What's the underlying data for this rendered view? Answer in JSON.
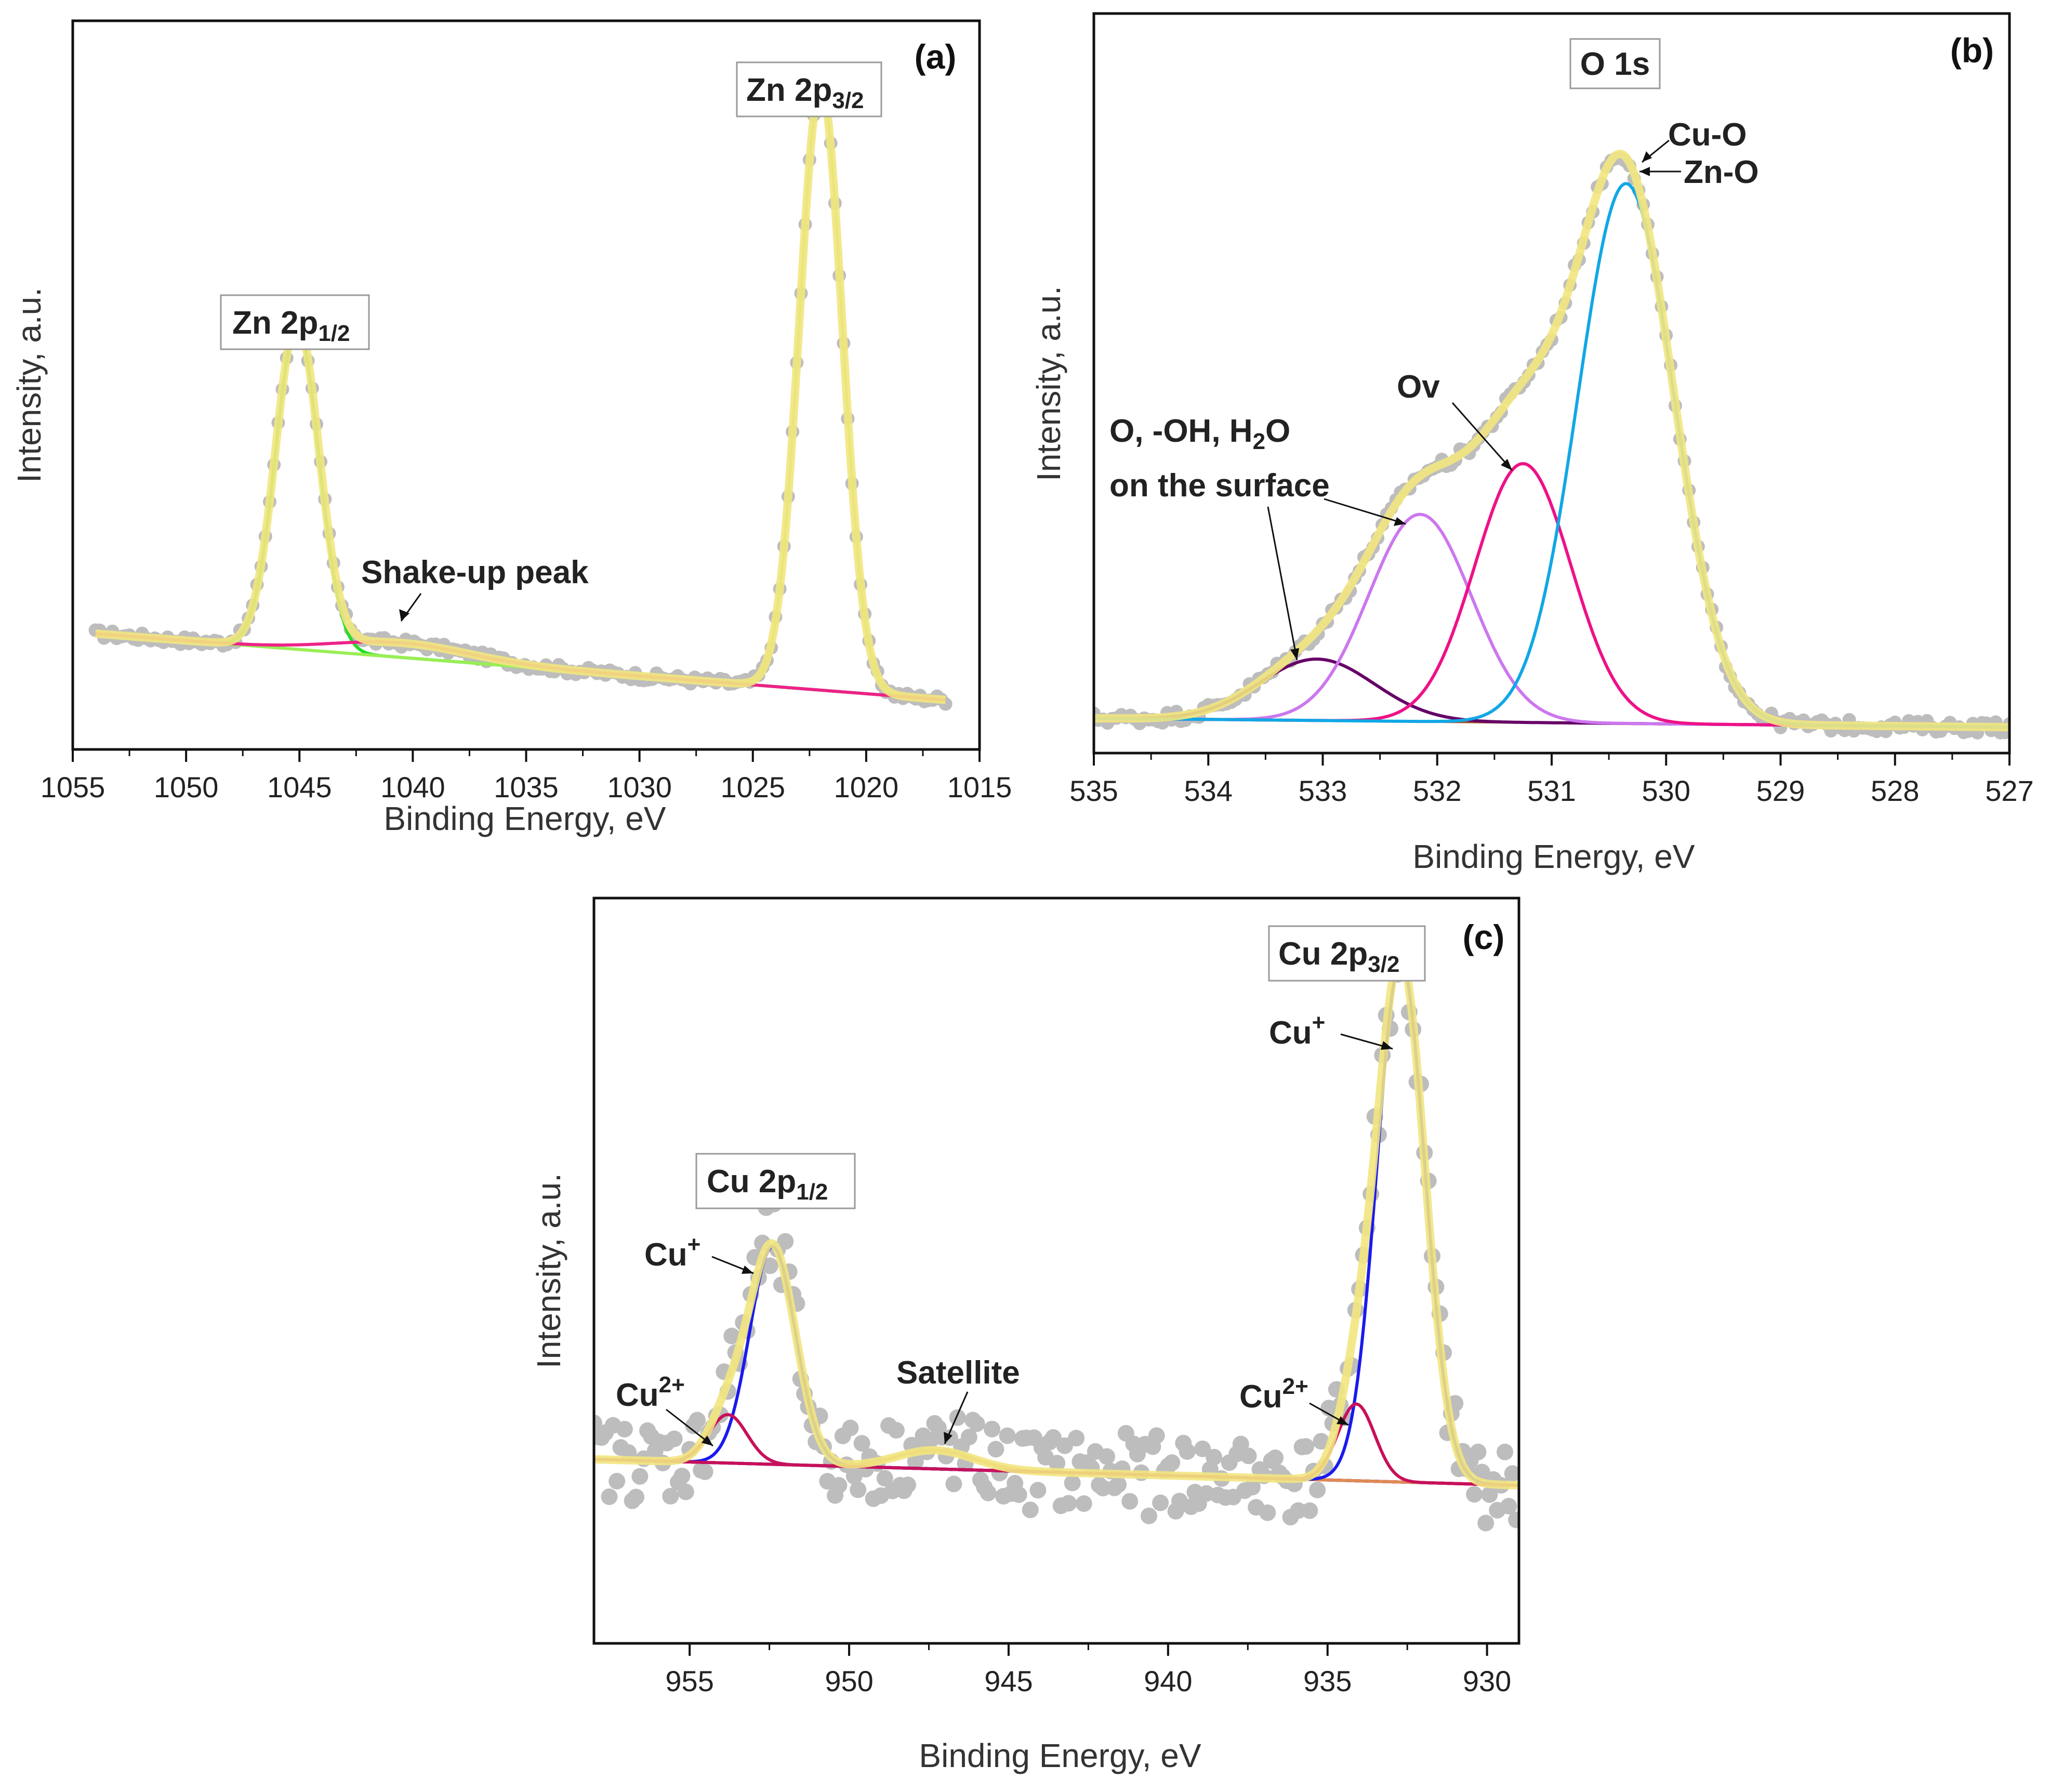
{
  "chart_data": [
    {
      "id": "a",
      "type": "line",
      "panel_label": "(a)",
      "xlabel": "Binding Energy, eV",
      "ylabel": "Intensity, a.u.",
      "xlim": [
        1055,
        1015
      ],
      "xticks": [
        1055,
        1050,
        1045,
        1040,
        1035,
        1030,
        1025,
        1020,
        1015
      ],
      "ylim": [
        0,
        1
      ],
      "peak_labels": [
        {
          "main": "Zn 2p",
          "sub": "1/2",
          "x": 1045.1
        },
        {
          "main": "Zn 2p",
          "sub": "3/2",
          "x": 1022.0
        }
      ],
      "annotations": [
        {
          "text": "Shake-up peak",
          "x": 1040.5
        }
      ],
      "background": {
        "x": [
          1054,
          1016.5
        ],
        "y": [
          0.159,
          0.068
        ]
      },
      "series": [
        {
          "name": "background",
          "color": "#22b422",
          "kind": "background"
        },
        {
          "name": "Zn 2p1/2",
          "color": "#22dd22",
          "peaks": [
            {
              "center": 1045.1,
              "height": 0.445,
              "width": 0.95
            }
          ]
        },
        {
          "name": "Zn 2p3/2",
          "color": "#99ee55",
          "peaks": [
            {
              "center": 1022.0,
              "height": 0.83,
              "width": 0.95
            }
          ]
        },
        {
          "name": "Shake-up",
          "color": "#ee2288",
          "peaks": [
            {
              "center": 1040.5,
              "height": 0.02,
              "width": 3.0
            }
          ]
        },
        {
          "name": "Envelope",
          "color": "#f2e680",
          "kind": "envelope"
        },
        {
          "name": "Experimental",
          "color": "#bdbdbd",
          "kind": "scatter"
        }
      ]
    },
    {
      "id": "b",
      "type": "line",
      "panel_label": "(b)",
      "xlabel": "Binding Energy, eV",
      "ylabel": "Intensity, a.u.",
      "xlim": [
        535,
        527
      ],
      "xticks": [
        535,
        534,
        533,
        532,
        531,
        530,
        529,
        528,
        527
      ],
      "ylim": [
        0,
        1
      ],
      "peak_labels": [
        {
          "main": "O 1s",
          "sub": "",
          "x": 530.5
        }
      ],
      "annotations": [
        {
          "text": "Cu-O",
          "x": 530.4
        },
        {
          "text": "Zn-O",
          "x": 530.35
        },
        {
          "text": "Ov",
          "x": 531.25
        },
        {
          "text": "O, -OH, H",
          "sub": "2",
          "tail": "O",
          "x": 532.15
        },
        {
          "text": "on the surface",
          "x": 533.05
        }
      ],
      "background": {
        "x": [
          535,
          527
        ],
        "y": [
          0.047,
          0.035
        ]
      },
      "series": [
        {
          "name": "O, -OH, H2O",
          "color": "#660066",
          "peaks": [
            {
              "center": 533.05,
              "height": 0.083,
              "width": 0.5
            }
          ]
        },
        {
          "name": "Surface O",
          "color": "#cc77ee",
          "peaks": [
            {
              "center": 532.15,
              "height": 0.28,
              "width": 0.45
            }
          ]
        },
        {
          "name": "Ov",
          "color": "#ee1188",
          "peaks": [
            {
              "center": 531.25,
              "height": 0.35,
              "width": 0.42
            }
          ]
        },
        {
          "name": "Cu-O / Zn-O",
          "color": "#11a7e6",
          "peaks": [
            {
              "center": 530.35,
              "height": 0.73,
              "width": 0.42
            }
          ]
        },
        {
          "name": "Envelope",
          "color": "#f2e680",
          "kind": "envelope"
        },
        {
          "name": "Experimental",
          "color": "#bdbdbd",
          "kind": "scatter"
        }
      ]
    },
    {
      "id": "c",
      "type": "line",
      "panel_label": "(c)",
      "xlabel": "Binding Energy, eV",
      "ylabel": "Intensity, a.u.",
      "xlim": [
        958,
        929
      ],
      "xticks": [
        955,
        950,
        945,
        940,
        935,
        930
      ],
      "ylim": [
        0,
        1
      ],
      "peak_labels": [
        {
          "main": "Cu 2p",
          "sub": "1/2",
          "x": 952.4
        },
        {
          "main": "Cu 2p",
          "sub": "3/2",
          "x": 932.7
        }
      ],
      "annotations": [
        {
          "text": "Cu",
          "sup": "+",
          "x": 952.4
        },
        {
          "text": "Cu",
          "sup": "2+",
          "x": 953.8
        },
        {
          "text": "Satellite",
          "x": 947.3
        },
        {
          "text": "Cu",
          "sup": "+",
          "x": 932.7
        },
        {
          "text": "Cu",
          "sup": "2+",
          "x": 934.1
        }
      ],
      "background": {
        "x": [
          958,
          929
        ],
        "y": [
          0.247,
          0.212
        ]
      },
      "series": [
        {
          "name": "Cu+ (2p1/2)",
          "color": "#1a1aee",
          "peaks": [
            {
              "center": 952.4,
              "height": 0.292,
              "width": 0.72
            }
          ]
        },
        {
          "name": "Cu2+ (2p1/2)",
          "color": "#c8105a",
          "peaks": [
            {
              "center": 953.8,
              "height": 0.065,
              "width": 0.6
            }
          ]
        },
        {
          "name": "Satellite",
          "color": "#e08a55",
          "peaks": [
            {
              "center": 947.3,
              "height": 0.025,
              "width": 1.2
            }
          ]
        },
        {
          "name": "Cu+ (2p3/2)",
          "color": "#1a1aee",
          "peaks": [
            {
              "center": 932.7,
              "height": 0.7,
              "width": 0.75
            }
          ]
        },
        {
          "name": "Cu2+ (2p3/2)",
          "color": "#c8105a",
          "peaks": [
            {
              "center": 934.1,
              "height": 0.103,
              "width": 0.58
            }
          ]
        },
        {
          "name": "Envelope",
          "color": "#f2e680",
          "kind": "envelope"
        },
        {
          "name": "Experimental",
          "color": "#bdbdbd",
          "kind": "scatter"
        }
      ]
    }
  ]
}
